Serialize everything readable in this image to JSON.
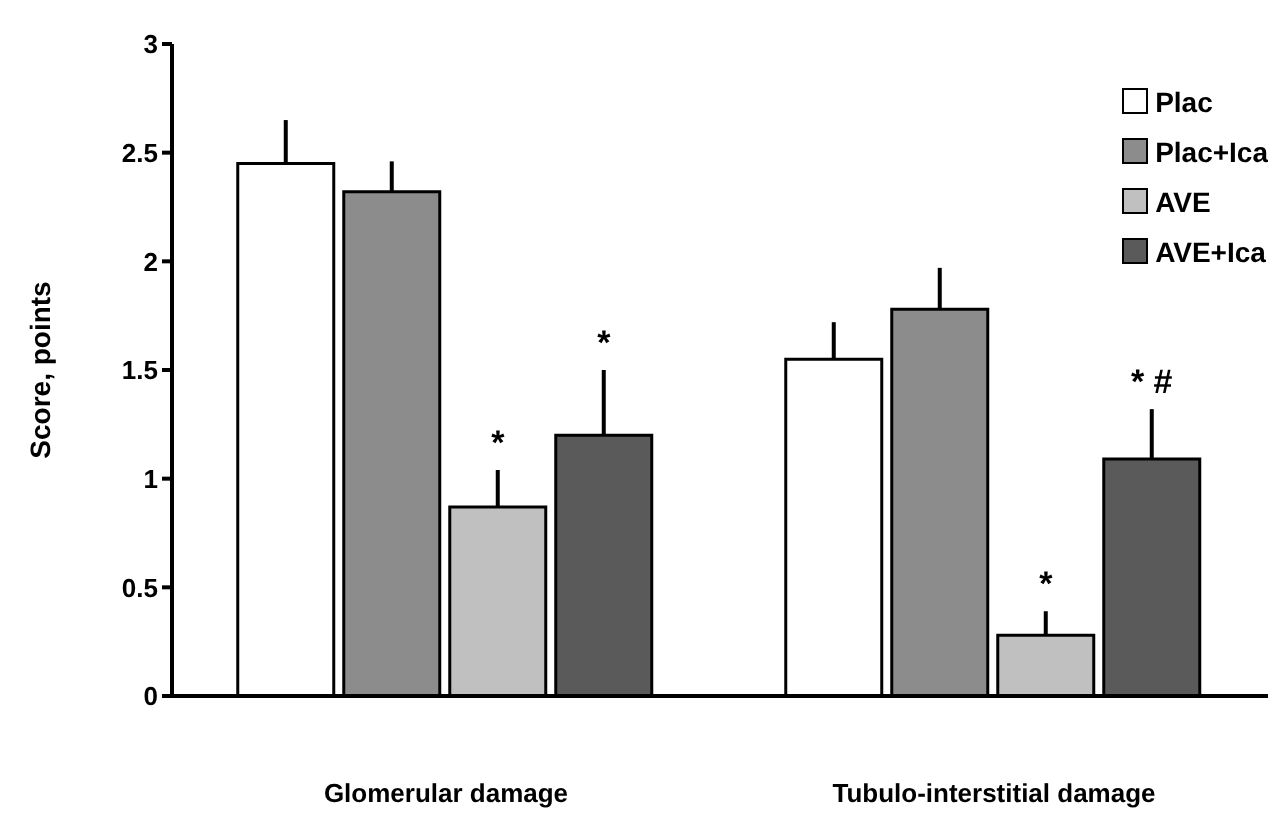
{
  "chart_data": {
    "type": "bar",
    "ylabel": "Score, points",
    "categories": [
      "Glomerular damage",
      "Tubulo-interstitial damage"
    ],
    "series": [
      {
        "name": "Plac",
        "color": "#ffffff",
        "values": [
          2.45,
          1.55
        ],
        "errors": [
          [
            2.45,
            2.65
          ],
          [
            1.55,
            1.72
          ]
        ]
      },
      {
        "name": "Plac+Ica",
        "color": "#8c8c8c",
        "values": [
          2.32,
          1.78
        ],
        "errors": [
          [
            2.32,
            2.46
          ],
          [
            1.78,
            1.97
          ]
        ]
      },
      {
        "name": "AVE",
        "color": "#c0c0c0",
        "values": [
          0.87,
          0.28
        ],
        "errors": [
          [
            0.87,
            1.04
          ],
          [
            0.28,
            0.39
          ]
        ],
        "value_labels": [
          "*",
          "*"
        ]
      },
      {
        "name": "AVE+Ica",
        "color": "#5a5a5a",
        "values": [
          1.2,
          1.09
        ],
        "errors": [
          [
            1.2,
            1.5
          ],
          [
            1.09,
            1.32
          ]
        ],
        "value_labels": [
          "*",
          "* #"
        ]
      }
    ],
    "ylim": [
      0,
      3
    ],
    "yticks": [
      0,
      0.5,
      1,
      1.5,
      2,
      2.5,
      3
    ],
    "grid": false,
    "legend": "top right"
  }
}
